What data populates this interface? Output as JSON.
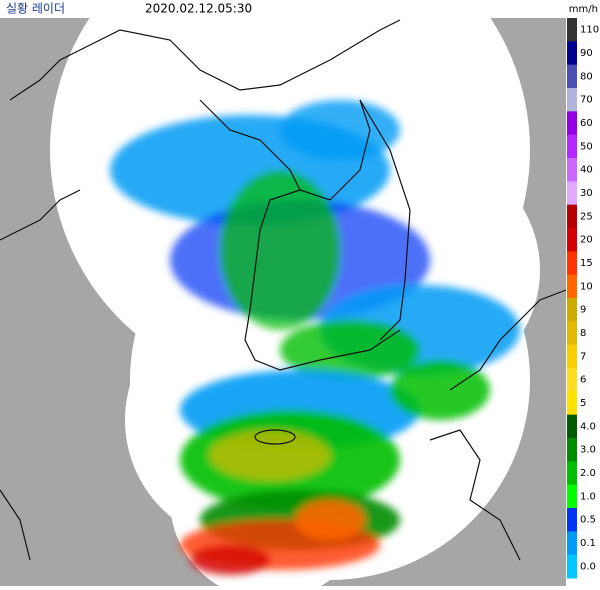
{
  "header": {
    "title": "실황 레이더",
    "time": "2020.02.12.05:30",
    "unit": "mm/h"
  },
  "legend": [
    {
      "label": "110",
      "color": "#333333"
    },
    {
      "label": "90",
      "color": "#000390"
    },
    {
      "label": "80",
      "color": "#4c4eb1"
    },
    {
      "label": "70",
      "color": "#b3b4de"
    },
    {
      "label": "60",
      "color": "#9300e4"
    },
    {
      "label": "50",
      "color": "#b329ff"
    },
    {
      "label": "40",
      "color": "#c969ff"
    },
    {
      "label": "30",
      "color": "#e0a9ff"
    },
    {
      "label": "25",
      "color": "#b40000"
    },
    {
      "label": "20",
      "color": "#d20000"
    },
    {
      "label": "15",
      "color": "#ff3200"
    },
    {
      "label": "10",
      "color": "#ff6600"
    },
    {
      "label": "9",
      "color": "#ccaa00"
    },
    {
      "label": "8",
      "color": "#e0b900"
    },
    {
      "label": "7",
      "color": "#f9cd00"
    },
    {
      "label": "6",
      "color": "#ffdc1f"
    },
    {
      "label": "5",
      "color": "#ffe100"
    },
    {
      "label": "4.0",
      "color": "#005a00"
    },
    {
      "label": "3.0",
      "color": "#008c00"
    },
    {
      "label": "2.0",
      "color": "#00be00"
    },
    {
      "label": "1.0",
      "color": "#00ff00"
    },
    {
      "label": "0.5",
      "color": "#0033f5"
    },
    {
      "label": "0.1",
      "color": "#009bf5"
    },
    {
      "label": "0.0",
      "color": "#00c8ff"
    }
  ]
}
